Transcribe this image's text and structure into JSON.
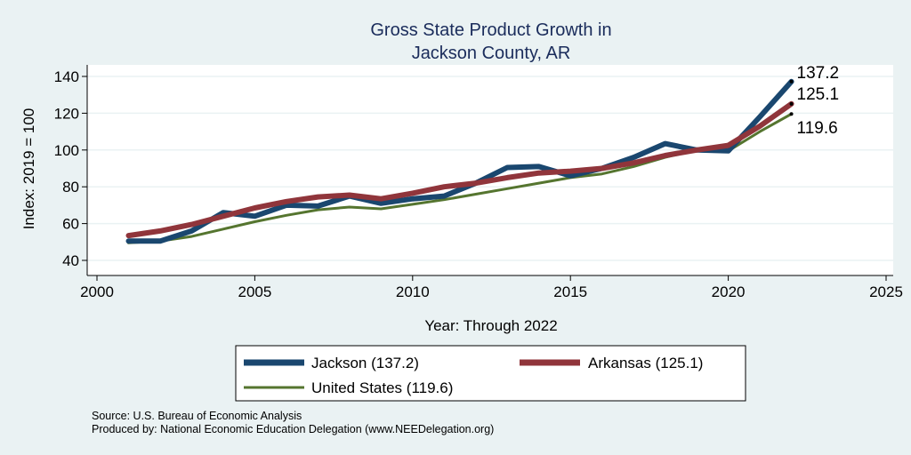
{
  "chart_data": {
    "type": "line",
    "title": [
      "Gross State Product Growth in",
      "Jackson County, AR"
    ],
    "xlabel": "Year: Through 2022",
    "ylabel": "Index: 2019 = 100",
    "xlim": [
      2000,
      2025
    ],
    "ylim": [
      40,
      140
    ],
    "xticks": [
      2000,
      2005,
      2010,
      2015,
      2020,
      2025
    ],
    "yticks": [
      40,
      60,
      80,
      100,
      120,
      140
    ],
    "grid": true,
    "series": [
      {
        "name": "Jackson",
        "legend": "Jackson  (137.2)",
        "end_label": "137.2",
        "color": "#1a476f",
        "x": [
          2001,
          2002,
          2003,
          2004,
          2005,
          2006,
          2007,
          2008,
          2009,
          2010,
          2011,
          2012,
          2013,
          2014,
          2015,
          2016,
          2017,
          2018,
          2019,
          2020,
          2021,
          2022
        ],
        "values": [
          50.5,
          50.5,
          56,
          66,
          64,
          70,
          69.5,
          75,
          71,
          73.5,
          75,
          82,
          90.5,
          91,
          86,
          90,
          96,
          103.5,
          100,
          99.5,
          118,
          137.2
        ]
      },
      {
        "name": "Arkansas",
        "legend": "Arkansas (125.1)",
        "end_label": "125.1",
        "color": "#90353b",
        "x": [
          2001,
          2002,
          2003,
          2004,
          2005,
          2006,
          2007,
          2008,
          2009,
          2010,
          2011,
          2012,
          2013,
          2014,
          2015,
          2016,
          2017,
          2018,
          2019,
          2020,
          2021,
          2022
        ],
        "values": [
          53.5,
          56,
          59.5,
          64,
          68.5,
          72,
          74.5,
          75.5,
          73.5,
          76.5,
          80,
          82,
          85,
          87.5,
          88.5,
          90,
          93,
          97,
          100,
          102.5,
          113,
          125.1
        ]
      },
      {
        "name": "United States",
        "legend": "United States (119.6)",
        "end_label": "119.6",
        "color": "#55752f",
        "x": [
          2001,
          2002,
          2003,
          2004,
          2005,
          2006,
          2007,
          2008,
          2009,
          2010,
          2011,
          2012,
          2013,
          2014,
          2015,
          2016,
          2017,
          2018,
          2019,
          2020,
          2021,
          2022
        ],
        "values": [
          49.5,
          50.5,
          53,
          57,
          61,
          64.5,
          67.5,
          69,
          68,
          70.5,
          73,
          76,
          79,
          82,
          85,
          87,
          91,
          96,
          100,
          99.5,
          110,
          119.6
        ]
      }
    ],
    "legend_position": "bottom",
    "notes": [
      "Source: U.S. Bureau of Economic Analysis",
      "Produced by: National Economic Education Delegation (www.NEEDelegation.org)"
    ]
  }
}
